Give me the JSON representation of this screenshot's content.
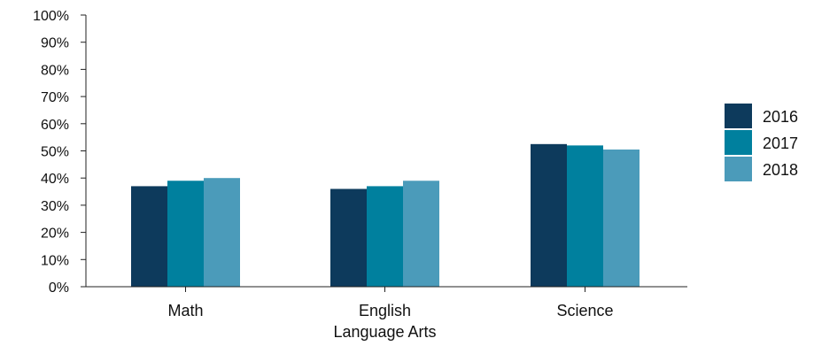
{
  "chart_data": {
    "type": "bar",
    "categories": [
      [
        "Math"
      ],
      [
        "English",
        "Language Arts"
      ],
      [
        "Science"
      ]
    ],
    "series": [
      {
        "name": "2016",
        "color": "#0d3a5c",
        "values": [
          37,
          36,
          52.5
        ]
      },
      {
        "name": "2017",
        "color": "#00809e",
        "values": [
          39,
          37,
          52
        ]
      },
      {
        "name": "2018",
        "color": "#4b9bba",
        "values": [
          40,
          39,
          50.5
        ]
      }
    ],
    "y_ticks": [
      "0%",
      "10%",
      "20%",
      "30%",
      "40%",
      "50%",
      "60%",
      "70%",
      "80%",
      "90%",
      "100%"
    ],
    "ylim": [
      0,
      100
    ],
    "legend_position": "right",
    "grid": false
  }
}
